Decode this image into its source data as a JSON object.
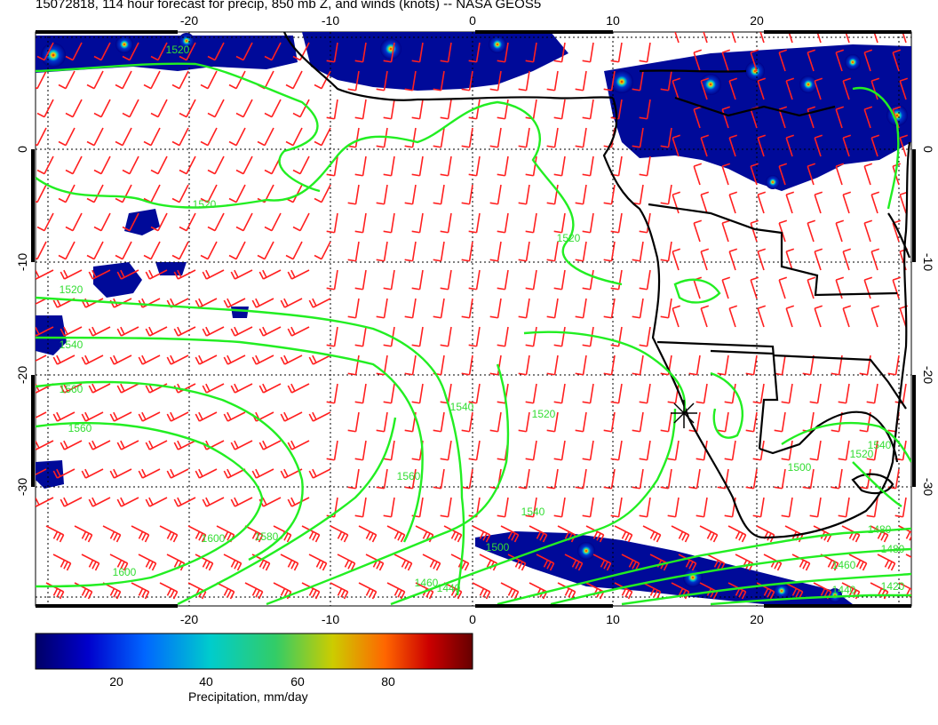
{
  "title": "15072818, 114 hour forecast for precip, 850 mb Z, and winds (knots) -- NASA GEOS5",
  "map": {
    "lon_ticks": [
      "-20",
      "-10",
      "0",
      "10",
      "20"
    ],
    "lat_ticks": [
      "0",
      "-10",
      "-20",
      "-30"
    ],
    "contour_labels": [
      "1520",
      "1520",
      "1520",
      "1520",
      "1540",
      "1560",
      "1560",
      "1540",
      "1520",
      "1600",
      "1600",
      "1580",
      "1560",
      "1540",
      "1500",
      "1480",
      "1480",
      "1460",
      "1440",
      "1460",
      "1440",
      "1420",
      "1500",
      "1520",
      "1540"
    ],
    "colors": {
      "wind_barbs": "#ff2020",
      "contours": "#22ee22",
      "coast": "#000000"
    },
    "marker_icon": "asterisk-marker-icon"
  },
  "colorbar": {
    "title": "Precipitation, mm/day",
    "ticks": [
      "20",
      "40",
      "60",
      "80"
    ],
    "colors": [
      "#000066",
      "#0000cc",
      "#0066ff",
      "#00cccc",
      "#33cc66",
      "#cccc00",
      "#ff6600",
      "#cc0000",
      "#660000"
    ]
  }
}
